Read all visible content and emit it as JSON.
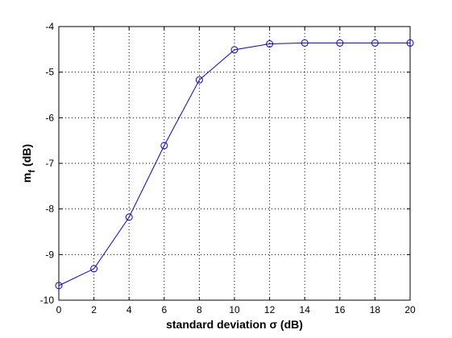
{
  "chart_data": {
    "type": "line",
    "x_label": "standard deviation σ (dB)",
    "y_label": [
      "m",
      "f",
      "(dB)"
    ],
    "x": [
      0,
      2,
      4,
      6,
      8,
      10,
      12,
      14,
      16,
      18,
      20
    ],
    "series": [
      {
        "color": "#0000ff",
        "marker": "circle",
        "values": [
          -9.68,
          -9.31,
          -8.18,
          -6.61,
          -5.17,
          -4.51,
          -4.38,
          -4.36,
          -4.36,
          -4.36,
          -4.36
        ]
      }
    ],
    "xlim": [
      0,
      20
    ],
    "xticks": [
      0,
      2,
      4,
      6,
      8,
      10,
      12,
      14,
      16,
      18,
      20
    ],
    "ylim": [
      -10,
      -4
    ],
    "yticks": [
      -10,
      -9,
      -8,
      -7,
      -6,
      -5,
      -4
    ],
    "grid": true
  }
}
